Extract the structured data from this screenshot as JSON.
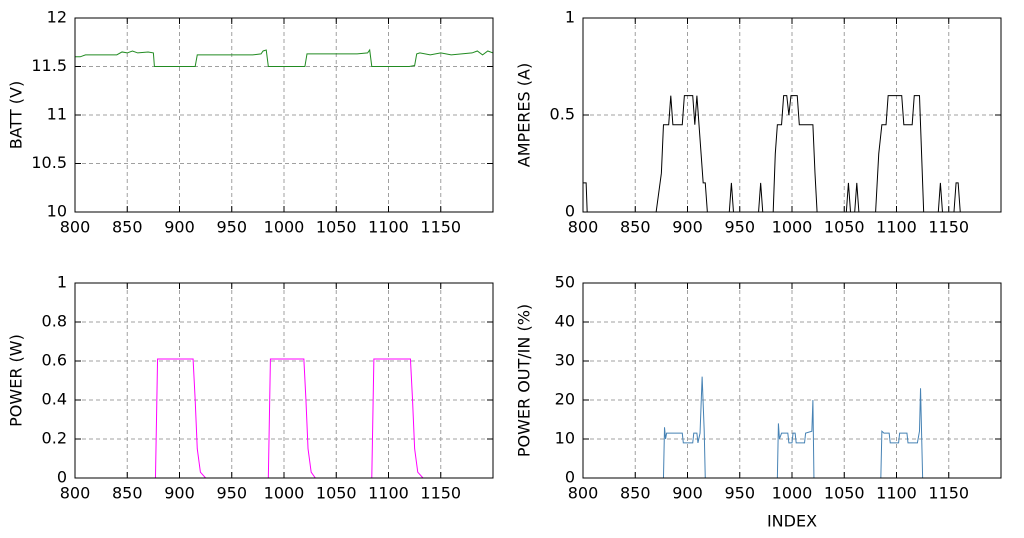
{
  "chart_data": [
    {
      "type": "line",
      "ylabel": "BATT (V)",
      "xlim": [
        800,
        1200
      ],
      "xticks": [
        800,
        850,
        900,
        950,
        1000,
        1050,
        1100,
        1150
      ],
      "ylim": [
        10,
        12
      ],
      "yticks": [
        10,
        10.5,
        11,
        11.5,
        12
      ],
      "grid": true,
      "x": [
        800,
        805,
        810,
        815,
        820,
        830,
        840,
        845,
        850,
        855,
        860,
        870,
        875,
        876,
        880,
        890,
        900,
        910,
        915,
        917,
        920,
        930,
        940,
        950,
        960,
        970,
        978,
        980,
        983,
        985,
        990,
        1000,
        1010,
        1020,
        1022,
        1030,
        1040,
        1050,
        1060,
        1070,
        1080,
        1082,
        1084,
        1090,
        1100,
        1110,
        1120,
        1125,
        1127,
        1130,
        1140,
        1150,
        1160,
        1170,
        1180,
        1185,
        1190,
        1195,
        1200
      ],
      "series": [
        {
          "color": "#228b22",
          "values": [
            11.6,
            11.6,
            11.62,
            11.62,
            11.62,
            11.62,
            11.62,
            11.65,
            11.64,
            11.66,
            11.64,
            11.65,
            11.64,
            11.5,
            11.5,
            11.5,
            11.5,
            11.5,
            11.5,
            11.62,
            11.62,
            11.62,
            11.62,
            11.62,
            11.62,
            11.62,
            11.63,
            11.66,
            11.67,
            11.5,
            11.5,
            11.5,
            11.5,
            11.5,
            11.63,
            11.63,
            11.63,
            11.63,
            11.63,
            11.63,
            11.64,
            11.67,
            11.5,
            11.5,
            11.5,
            11.5,
            11.5,
            11.51,
            11.63,
            11.64,
            11.62,
            11.64,
            11.62,
            11.63,
            11.64,
            11.66,
            11.62,
            11.66,
            11.64
          ]
        }
      ]
    },
    {
      "type": "line",
      "ylabel": "AMPERES (A)",
      "xlim": [
        800,
        1200
      ],
      "xticks": [
        800,
        850,
        900,
        950,
        1000,
        1050,
        1100,
        1150
      ],
      "ylim": [
        0,
        1
      ],
      "yticks": [
        0,
        0.5,
        1
      ],
      "grid": true,
      "x": [
        800,
        803,
        804,
        808,
        870,
        875,
        877,
        882,
        884,
        886,
        895,
        897,
        905,
        907,
        909,
        911,
        913,
        915,
        917,
        919,
        940,
        942,
        944,
        968,
        970,
        972,
        982,
        984,
        986,
        990,
        992,
        995,
        997,
        999,
        1005,
        1007,
        1020,
        1022,
        1024,
        1052,
        1054,
        1056,
        1060,
        1062,
        1064,
        1080,
        1083,
        1086,
        1090,
        1092,
        1105,
        1107,
        1115,
        1117,
        1122,
        1124,
        1126,
        1140,
        1142,
        1144,
        1155,
        1157,
        1159,
        1161,
        1200
      ],
      "series": [
        {
          "color": "#000000",
          "values": [
            0.15,
            0.15,
            0,
            0,
            0,
            0.2,
            0.45,
            0.45,
            0.6,
            0.45,
            0.45,
            0.6,
            0.6,
            0.45,
            0.6,
            0.45,
            0.3,
            0.15,
            0.15,
            0,
            0,
            0.15,
            0,
            0,
            0.15,
            0,
            0,
            0.3,
            0.45,
            0.45,
            0.6,
            0.6,
            0.5,
            0.6,
            0.6,
            0.45,
            0.45,
            0.2,
            0,
            0,
            0.15,
            0,
            0,
            0.15,
            0,
            0,
            0.3,
            0.45,
            0.45,
            0.6,
            0.6,
            0.45,
            0.45,
            0.6,
            0.6,
            0.3,
            0,
            0,
            0.15,
            0,
            0,
            0.15,
            0.15,
            0,
            0
          ]
        }
      ]
    },
    {
      "type": "line",
      "ylabel": "POWER (W)",
      "xlim": [
        800,
        1200
      ],
      "xticks": [
        800,
        850,
        900,
        950,
        1000,
        1050,
        1100,
        1150
      ],
      "ylim": [
        0,
        1
      ],
      "yticks": [
        0,
        0.2,
        0.4,
        0.6,
        0.8,
        1
      ],
      "grid": true,
      "x": [
        800,
        877,
        879,
        913,
        915,
        917,
        920,
        925,
        985,
        987,
        1019,
        1021,
        1023,
        1026,
        1030,
        1084,
        1086,
        1121,
        1123,
        1125,
        1128,
        1133,
        1200
      ],
      "series": [
        {
          "color": "#ff00ff",
          "values": [
            0,
            0,
            0.61,
            0.61,
            0.4,
            0.15,
            0.03,
            0,
            0,
            0.61,
            0.61,
            0.4,
            0.15,
            0.03,
            0,
            0,
            0.61,
            0.61,
            0.4,
            0.15,
            0.03,
            0,
            0
          ]
        }
      ]
    },
    {
      "type": "line",
      "ylabel": "POWER OUT/IN (%)",
      "xlabel": "INDEX",
      "xlim": [
        800,
        1200
      ],
      "xticks": [
        800,
        850,
        900,
        950,
        1000,
        1050,
        1100,
        1150
      ],
      "ylim": [
        0,
        50
      ],
      "yticks": [
        0,
        10,
        20,
        30,
        40,
        50
      ],
      "grid": true,
      "x": [
        800,
        877,
        878,
        879,
        880,
        895,
        896,
        905,
        906,
        909,
        910,
        912,
        914,
        916,
        917,
        986,
        987,
        988,
        990,
        996,
        997,
        1000,
        1001,
        1003,
        1004,
        1012,
        1013,
        1019,
        1020,
        1021,
        1085,
        1086,
        1088,
        1093,
        1094,
        1102,
        1103,
        1110,
        1111,
        1120,
        1122,
        1123,
        1125,
        1200
      ],
      "series": [
        {
          "color": "#4682b4",
          "values": [
            0,
            0,
            13,
            10,
            11.5,
            11.5,
            9,
            9,
            11.5,
            11.5,
            9,
            11.5,
            26,
            12,
            0,
            0,
            14,
            10,
            11.5,
            11.5,
            9,
            9,
            11.5,
            11.5,
            9,
            9,
            11.5,
            12,
            20,
            0,
            0,
            12,
            11.5,
            11.5,
            9,
            9,
            11.5,
            11.5,
            9,
            9,
            12,
            23,
            0,
            0
          ]
        }
      ]
    }
  ]
}
